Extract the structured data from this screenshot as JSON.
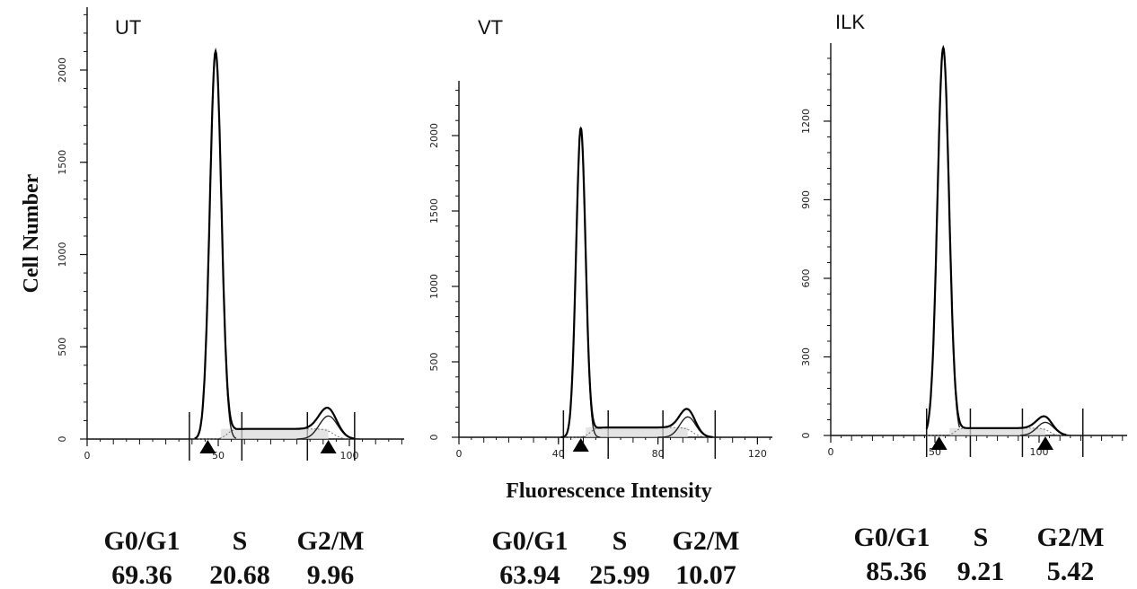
{
  "figure": {
    "ylabel": "Cell Number",
    "xlabel": "Fluorescence Intensity"
  },
  "chart_data": [
    {
      "type": "line",
      "title": "UT",
      "xlim": [
        0,
        130
      ],
      "ylim": [
        0,
        2400
      ],
      "x_ticks": [
        0,
        50,
        100
      ],
      "y_ticks": [
        0,
        500,
        1000,
        1500,
        2000
      ],
      "markers_x": [
        46,
        92
      ],
      "gates_x": [
        39,
        59,
        84,
        102
      ],
      "peaks": [
        {
          "center": 49,
          "height": 2100,
          "width": 2.2
        },
        {
          "center": 92,
          "height": 125,
          "width": 3.5
        }
      ],
      "s_phase_level": 55,
      "s_phase_range": [
        51,
        92
      ],
      "phases": {
        "labels": [
          "G0/G1",
          "S",
          "G2/M"
        ],
        "values": [
          "69.36",
          "20.68",
          "9.96"
        ]
      }
    },
    {
      "type": "line",
      "title": "VT",
      "xlim": [
        0,
        125
      ],
      "ylim": [
        0,
        2400
      ],
      "x_ticks": [
        0,
        40,
        80,
        120
      ],
      "x_tick_labels": [
        "0",
        "40",
        "80",
        "120"
      ],
      "y_ticks": [
        0,
        500,
        1000,
        1500,
        2000
      ],
      "markers_x": [
        49
      ],
      "gates_x": [
        42,
        60,
        82,
        103
      ],
      "peaks": [
        {
          "center": 49,
          "height": 2050,
          "width": 1.9
        },
        {
          "center": 92,
          "height": 135,
          "width": 3.2
        }
      ],
      "s_phase_level": 65,
      "s_phase_range": [
        51,
        92
      ],
      "phases": {
        "labels": [
          "G0/G1",
          "S",
          "G2/M"
        ],
        "values": [
          "63.94",
          "25.99",
          "10.07"
        ]
      }
    },
    {
      "type": "line",
      "title": "ILK",
      "xlim": [
        0,
        150
      ],
      "ylim": [
        0,
        1500
      ],
      "x_ticks": [
        0,
        50,
        100
      ],
      "y_ticks": [
        0,
        300,
        600,
        900,
        1200
      ],
      "markers_x": [
        52,
        103
      ],
      "gates_x": [
        46,
        67,
        92,
        121
      ],
      "peaks": [
        {
          "center": 54,
          "height": 1480,
          "width": 2.8
        },
        {
          "center": 103,
          "height": 50,
          "width": 4
        }
      ],
      "s_phase_level": 28,
      "s_phase_range": [
        57,
        103
      ],
      "phases": {
        "labels": [
          "G0/G1",
          "S",
          "G2/M"
        ],
        "values": [
          "85.36",
          "9.21",
          "5.42"
        ]
      }
    }
  ]
}
